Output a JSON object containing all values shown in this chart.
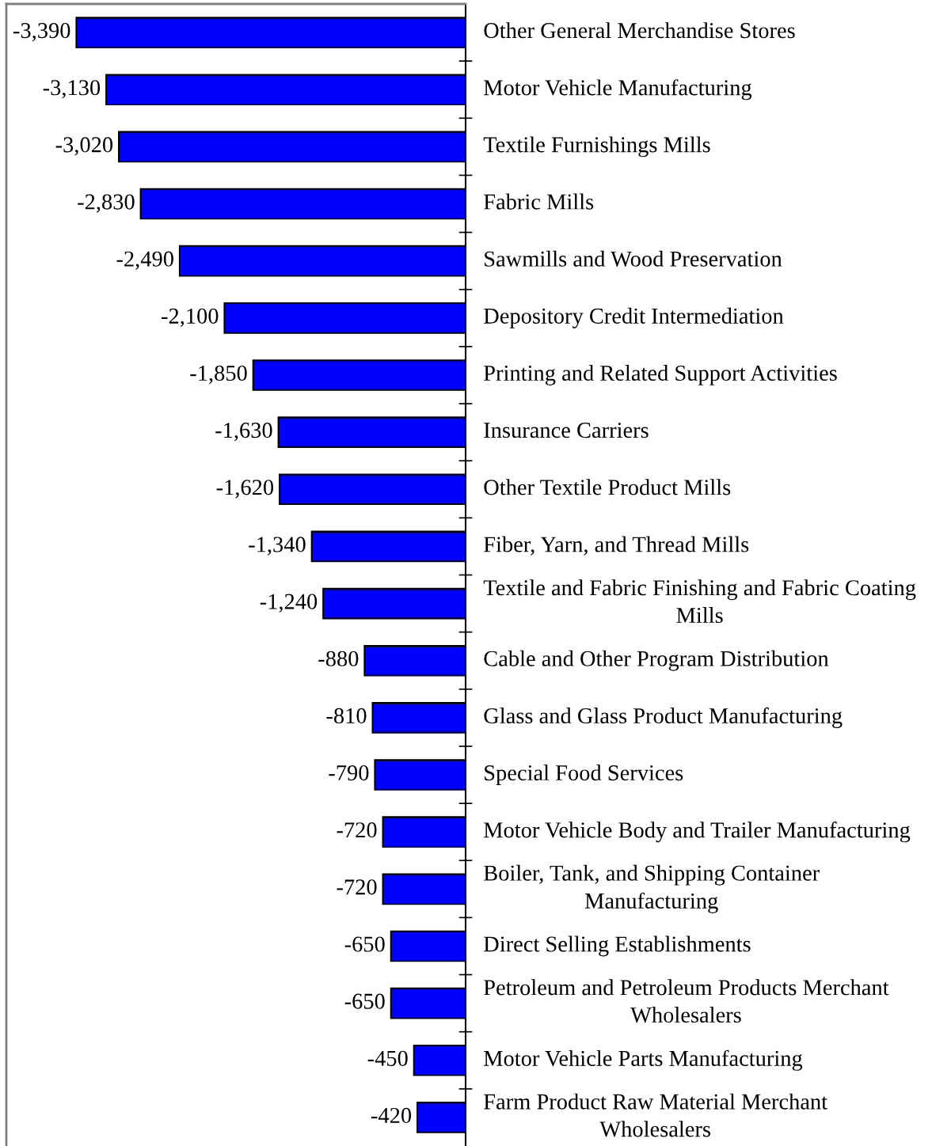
{
  "chart_data": {
    "type": "bar",
    "orientation": "horizontal",
    "categories": [
      "Other General Merchandise Stores",
      "Motor Vehicle Manufacturing",
      "Textile Furnishings Mills",
      "Fabric Mills",
      "Sawmills and Wood Preservation",
      "Depository Credit Intermediation",
      "Printing and Related Support Activities",
      "Insurance Carriers",
      "Other Textile Product Mills",
      "Fiber, Yarn, and Thread Mills",
      "Textile and Fabric Finishing and Fabric Coating\nMills",
      "Cable and Other Program Distribution",
      "Glass and Glass Product Manufacturing",
      "Special Food Services",
      "Motor Vehicle Body and Trailer Manufacturing",
      "Boiler, Tank, and Shipping Container\nManufacturing",
      "Direct Selling Establishments",
      "Petroleum and Petroleum Products Merchant\nWholesalers",
      "Motor Vehicle Parts Manufacturing",
      "Farm Product Raw Material Merchant\nWholesalers"
    ],
    "values": [
      -3390,
      -3130,
      -3020,
      -2830,
      -2490,
      -2100,
      -1850,
      -1630,
      -1620,
      -1340,
      -1240,
      -880,
      -810,
      -790,
      -720,
      -720,
      -650,
      -650,
      -450,
      -420
    ],
    "value_labels": [
      "-3,390",
      "-3,130",
      "-3,020",
      "-2,830",
      "-2,490",
      "-2,100",
      "-1,850",
      "-1,630",
      "-1,620",
      "-1,340",
      "-1,240",
      "-880",
      "-810",
      "-790",
      "-720",
      "-720",
      "-650",
      "-650",
      "-450",
      "-420"
    ],
    "color": "#0000ff",
    "xlim": [
      -4000,
      0
    ],
    "tick_labels": "y",
    "grid": false,
    "legend": false
  }
}
